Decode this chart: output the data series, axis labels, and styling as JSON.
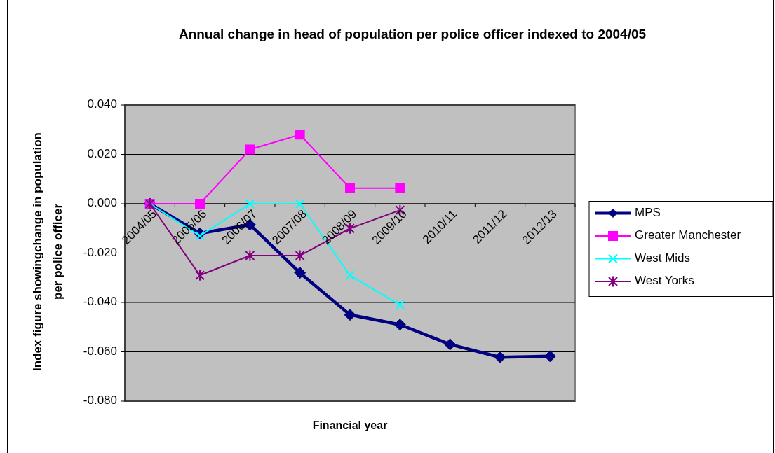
{
  "chart_data": {
    "type": "line",
    "title": "Annual change in head of population per police officer indexed to 2004/05",
    "xlabel": "Financial year",
    "ylabel": "Index figure showingchange in population per police officer",
    "categories": [
      "2004/05",
      "2005/06",
      "2006/07",
      "2007/08",
      "2008/09",
      "2009/10",
      "2010/11",
      "2011/12",
      "2012/13"
    ],
    "series": [
      {
        "name": "MPS",
        "color": "#000080",
        "marker": "diamond",
        "values": [
          0,
          -0.012,
          -0.0085,
          -0.028,
          -0.045,
          -0.049,
          -0.057,
          -0.0622,
          -0.0618
        ]
      },
      {
        "name": "Greater Manchester",
        "color": "#ff00ff",
        "marker": "square",
        "values": [
          0,
          0,
          0.022,
          0.028,
          0.0063,
          0.0063,
          null,
          null,
          null
        ]
      },
      {
        "name": "West Mids",
        "color": "#00ffff",
        "marker": "cross",
        "values": [
          0,
          -0.013,
          0,
          0,
          -0.029,
          -0.041,
          null,
          null,
          null
        ]
      },
      {
        "name": "West Yorks",
        "color": "#800080",
        "marker": "cross",
        "values": [
          0,
          -0.029,
          -0.021,
          -0.021,
          -0.01,
          -0.0026,
          null,
          null,
          null
        ]
      }
    ],
    "ylim": [
      -0.08,
      0.04
    ],
    "yticks": [
      {
        "value": -0.08,
        "label": "-0.080"
      },
      {
        "value": -0.06,
        "label": "-0.060"
      },
      {
        "value": -0.04,
        "label": "-0.040"
      },
      {
        "value": -0.02,
        "label": "-0.020"
      },
      {
        "value": 0,
        "label": "0.000"
      },
      {
        "value": 0.02,
        "label": "0.020"
      },
      {
        "value": 0.04,
        "label": "0.040"
      }
    ],
    "grid": "y",
    "legend": "right"
  }
}
